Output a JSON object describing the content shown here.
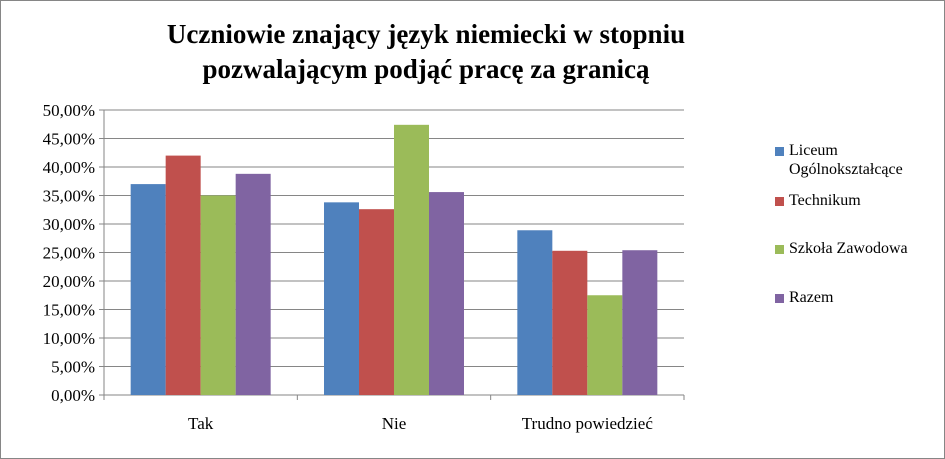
{
  "chart_data": {
    "type": "bar",
    "title_lines": [
      "Uczniowie znający język niemiecki w stopniu",
      "pozwalającym podjąć pracę za granicą"
    ],
    "categories": [
      "Tak",
      "Nie",
      "Trudno powiedzieć"
    ],
    "series": [
      {
        "name": "Liceum Ogólnokształcące",
        "name_lines": [
          "Liceum",
          "Ogólnokształcące"
        ],
        "color": "#4f81bd",
        "values": [
          37.0,
          33.8,
          28.9
        ]
      },
      {
        "name": "Technikum",
        "name_lines": [
          "Technikum"
        ],
        "color": "#c0504d",
        "values": [
          42.0,
          32.6,
          25.3
        ]
      },
      {
        "name": "Szkoła Zawodowa",
        "name_lines": [
          "Szkoła Zawodowa"
        ],
        "color": "#9bbb59",
        "values": [
          35.0,
          47.4,
          17.5
        ]
      },
      {
        "name": "Razem",
        "name_lines": [
          "Razem"
        ],
        "color": "#8064a2",
        "values": [
          38.8,
          35.6,
          25.4
        ]
      }
    ],
    "yticks": [
      "0,00%",
      "5,00%",
      "10,00%",
      "15,00%",
      "20,00%",
      "25,00%",
      "30,00%",
      "35,00%",
      "40,00%",
      "45,00%",
      "50,00%"
    ],
    "ylim": [
      0,
      50
    ],
    "grid": true,
    "legend_position": "right"
  }
}
